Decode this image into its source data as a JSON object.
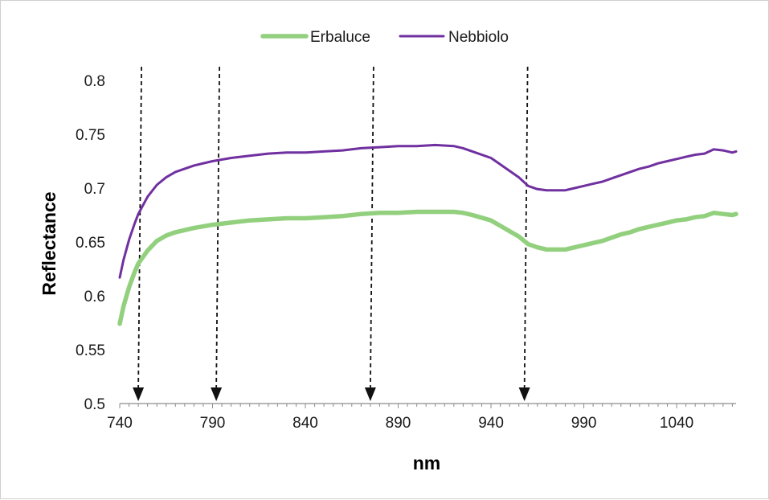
{
  "chart_data": {
    "type": "line",
    "xlabel": "nm",
    "ylabel": "Reflectance",
    "xlim": [
      740,
      1072
    ],
    "ylim": [
      0.5,
      0.8
    ],
    "xticks": [
      "740",
      "790",
      "840",
      "890",
      "940",
      "990",
      "1040"
    ],
    "yticks": [
      "0.5",
      "0.55",
      "0.6",
      "0.65",
      "0.7",
      "0.75",
      "0.8"
    ],
    "grid": false,
    "legend_position": "top",
    "series": [
      {
        "name": "Erbaluce",
        "color": "#92d07e",
        "x": [
          740,
          742,
          745,
          748,
          750,
          755,
          760,
          765,
          770,
          780,
          790,
          800,
          810,
          820,
          830,
          840,
          850,
          860,
          870,
          880,
          890,
          900,
          910,
          920,
          925,
          930,
          940,
          945,
          950,
          955,
          960,
          965,
          970,
          975,
          980,
          985,
          990,
          995,
          1000,
          1005,
          1010,
          1015,
          1020,
          1025,
          1030,
          1035,
          1040,
          1045,
          1050,
          1055,
          1060,
          1065,
          1070,
          1072
        ],
        "values": [
          0.574,
          0.59,
          0.608,
          0.622,
          0.63,
          0.642,
          0.651,
          0.656,
          0.659,
          0.663,
          0.666,
          0.668,
          0.67,
          0.671,
          0.672,
          0.672,
          0.673,
          0.674,
          0.676,
          0.677,
          0.677,
          0.678,
          0.678,
          0.678,
          0.677,
          0.675,
          0.67,
          0.665,
          0.66,
          0.655,
          0.648,
          0.645,
          0.643,
          0.643,
          0.643,
          0.645,
          0.647,
          0.649,
          0.651,
          0.654,
          0.657,
          0.659,
          0.662,
          0.664,
          0.666,
          0.668,
          0.67,
          0.671,
          0.673,
          0.674,
          0.677,
          0.676,
          0.675,
          0.676
        ]
      },
      {
        "name": "Nebbiolo",
        "color": "#7030a0",
        "x": [
          740,
          742,
          745,
          748,
          750,
          755,
          760,
          765,
          770,
          780,
          790,
          800,
          810,
          820,
          830,
          840,
          850,
          860,
          870,
          880,
          890,
          900,
          910,
          920,
          925,
          930,
          940,
          945,
          950,
          955,
          960,
          965,
          970,
          975,
          980,
          985,
          990,
          995,
          1000,
          1005,
          1010,
          1015,
          1020,
          1025,
          1030,
          1035,
          1040,
          1045,
          1050,
          1055,
          1060,
          1065,
          1070,
          1072
        ],
        "values": [
          0.617,
          0.633,
          0.652,
          0.667,
          0.676,
          0.692,
          0.703,
          0.71,
          0.715,
          0.721,
          0.725,
          0.728,
          0.73,
          0.732,
          0.733,
          0.733,
          0.734,
          0.735,
          0.737,
          0.738,
          0.739,
          0.739,
          0.74,
          0.739,
          0.737,
          0.734,
          0.728,
          0.722,
          0.716,
          0.71,
          0.702,
          0.699,
          0.698,
          0.698,
          0.698,
          0.7,
          0.702,
          0.704,
          0.706,
          0.709,
          0.712,
          0.715,
          0.718,
          0.72,
          0.723,
          0.725,
          0.727,
          0.729,
          0.731,
          0.732,
          0.736,
          0.735,
          0.733,
          0.734
        ]
      }
    ],
    "annotations": {
      "type": "downward dashed arrows",
      "x": [
        750,
        792,
        875,
        958
      ]
    }
  }
}
